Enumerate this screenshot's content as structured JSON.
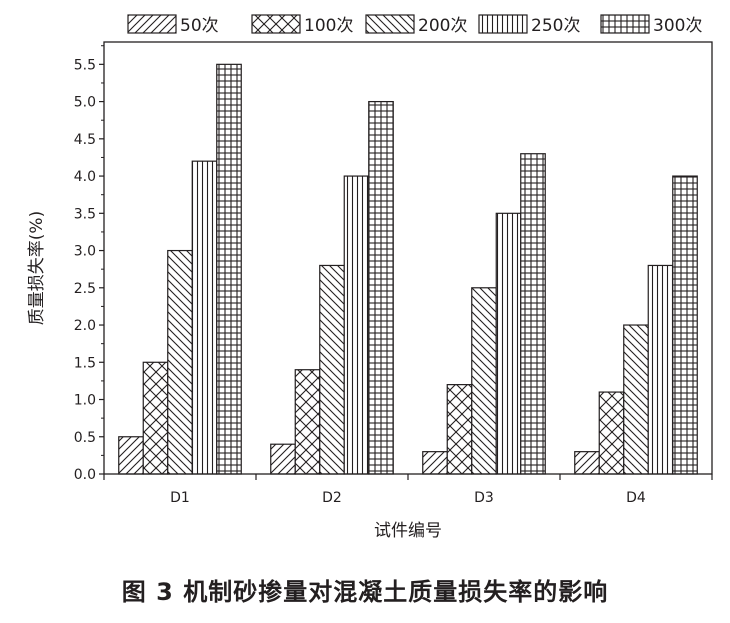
{
  "caption": "图 3   机制砂掺量对混凝土质量损失率的影响",
  "chart_data": {
    "type": "bar",
    "title": "",
    "xlabel": "试件编号",
    "ylabel": "质量损失率(%)",
    "categories": [
      "D1",
      "D2",
      "D3",
      "D4"
    ],
    "ylim": [
      0,
      5.8
    ],
    "yticks": [
      "0.0",
      "0.5",
      "1.0",
      "1.5",
      "2.0",
      "2.5",
      "3.0",
      "3.5",
      "4.0",
      "4.5",
      "5.0",
      "5.5"
    ],
    "grid": false,
    "legend_position": "top",
    "bar_fill": "#ffffff",
    "stroke_color": "#231f20",
    "series": [
      {
        "name": "50次",
        "pattern": "diagonal-up",
        "values": [
          0.5,
          0.4,
          0.3,
          0.3
        ]
      },
      {
        "name": "100次",
        "pattern": "crosshatch",
        "values": [
          1.5,
          1.4,
          1.2,
          1.1
        ]
      },
      {
        "name": "200次",
        "pattern": "diagonal-down",
        "values": [
          3.0,
          2.8,
          2.5,
          2.0
        ]
      },
      {
        "name": "250次",
        "pattern": "vertical",
        "values": [
          4.2,
          4.0,
          3.5,
          2.8
        ]
      },
      {
        "name": "300次",
        "pattern": "grid",
        "values": [
          5.5,
          5.0,
          4.3,
          4.0
        ]
      }
    ]
  }
}
